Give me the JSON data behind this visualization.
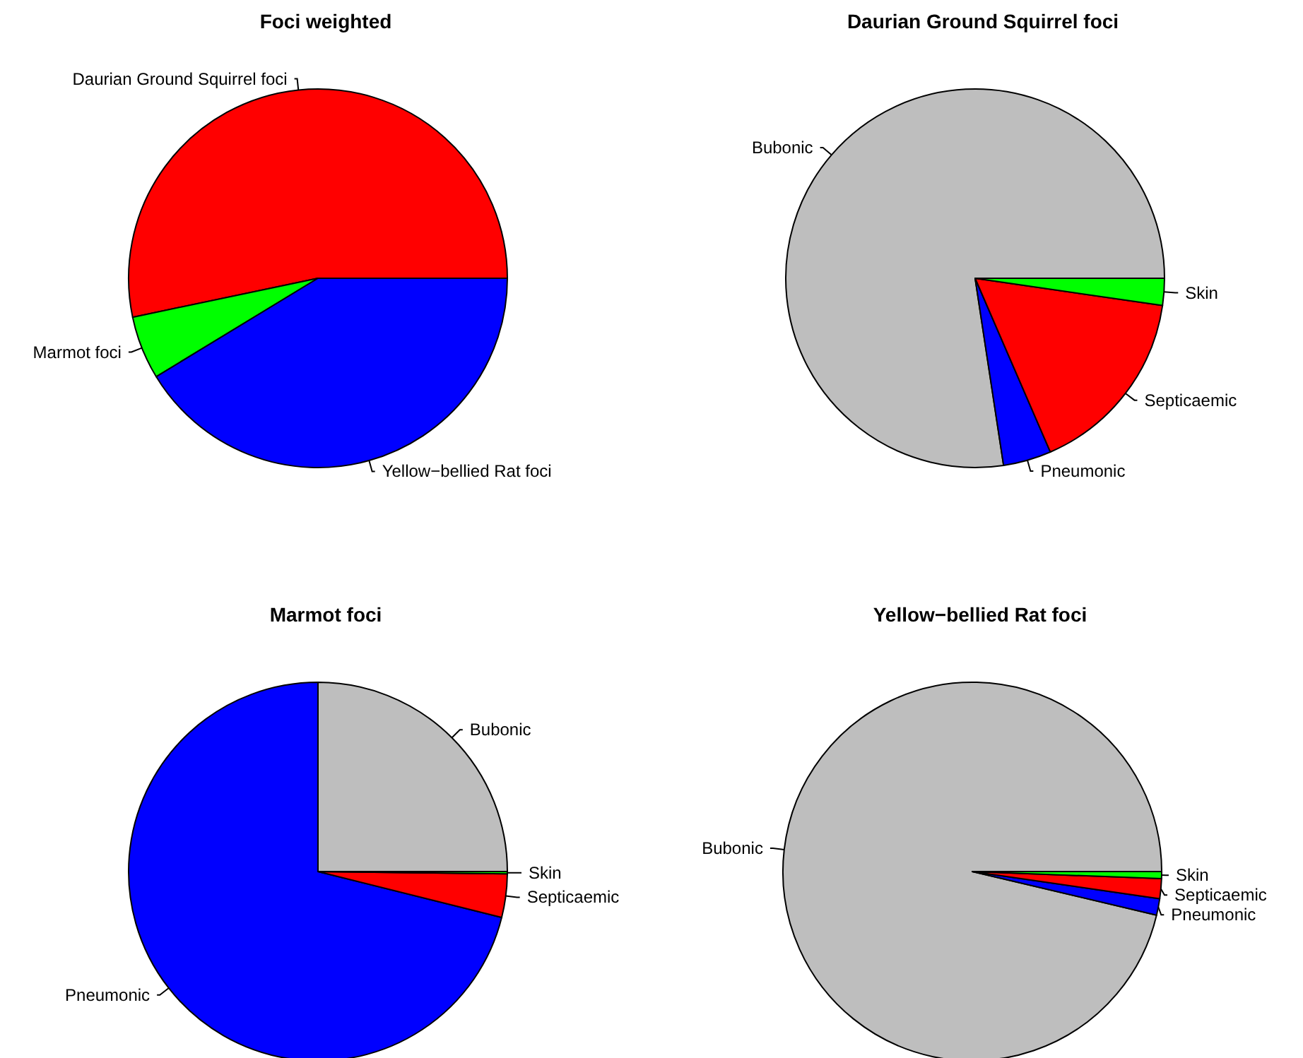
{
  "chart_data": [
    {
      "type": "pie",
      "title": "Foci weighted",
      "categories": [
        "Daurian Ground Squirrel foci",
        "Marmot foci",
        "Yellow−bellied Rat foci"
      ],
      "values": [
        53.3,
        5.4,
        41.3
      ],
      "colors": [
        "#ff0000",
        "#00ff00",
        "#0000ff"
      ]
    },
    {
      "type": "pie",
      "title": "Daurian Ground Squirrel foci",
      "categories": [
        "Bubonic",
        "Pneumonic",
        "Septicaemic",
        "Skin"
      ],
      "values": [
        77.4,
        4.1,
        16.2,
        2.3
      ],
      "colors": [
        "#bebebe",
        "#0000ff",
        "#ff0000",
        "#00ff00"
      ]
    },
    {
      "type": "pie",
      "title": "Marmot foci",
      "categories": [
        "Bubonic",
        "Pneumonic",
        "Septicaemic",
        "Skin"
      ],
      "values": [
        25,
        71.1,
        3.7,
        0.2
      ],
      "colors": [
        "#bebebe",
        "#0000ff",
        "#ff0000",
        "#00ff00"
      ]
    },
    {
      "type": "pie",
      "title": "Yellow−bellied Rat foci",
      "categories": [
        "Bubonic",
        "Pneumonic",
        "Septicaemic",
        "Skin"
      ],
      "values": [
        96.3,
        1.4,
        1.7,
        0.6
      ],
      "colors": [
        "#bebebe",
        "#0000ff",
        "#ff0000",
        "#00ff00"
      ]
    }
  ]
}
